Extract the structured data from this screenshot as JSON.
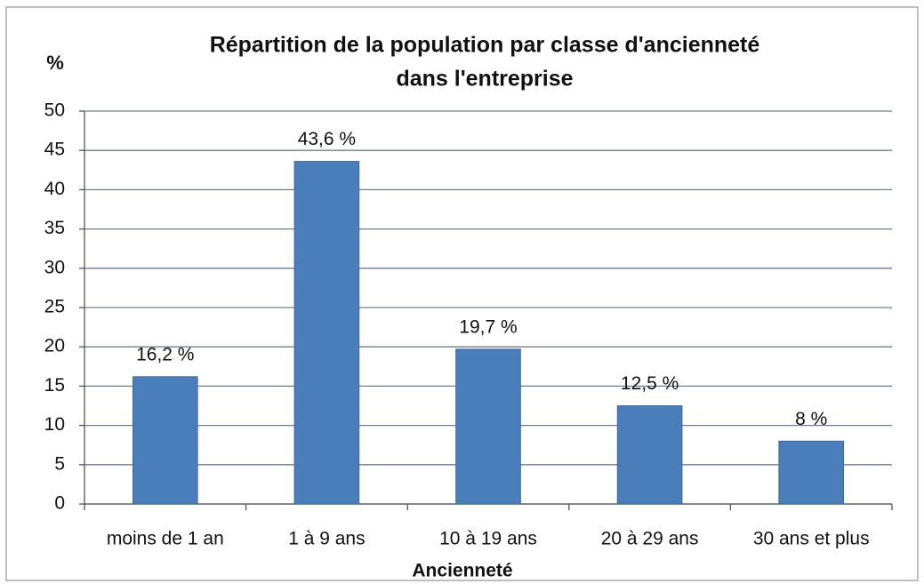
{
  "chart_data": {
    "type": "bar",
    "title": [
      "Répartition de la population par classe d'ancienneté",
      "dans l'entreprise"
    ],
    "y_label": "%",
    "x_label": "Ancienneté",
    "categories": [
      "moins de 1 an",
      "1 à 9 ans",
      "10 à 19 ans",
      "20 à 29 ans",
      "30 ans et plus"
    ],
    "values": [
      16.2,
      43.6,
      19.7,
      12.5,
      8
    ],
    "value_labels": [
      "16,2 %",
      "43,6 %",
      "19,7 %",
      "12,5 %",
      "8 %"
    ],
    "color": "#4a7ebb",
    "ylim": [
      0,
      50
    ],
    "yticks": [
      0,
      5,
      10,
      15,
      20,
      25,
      30,
      35,
      40,
      45,
      50
    ],
    "grid": true
  }
}
